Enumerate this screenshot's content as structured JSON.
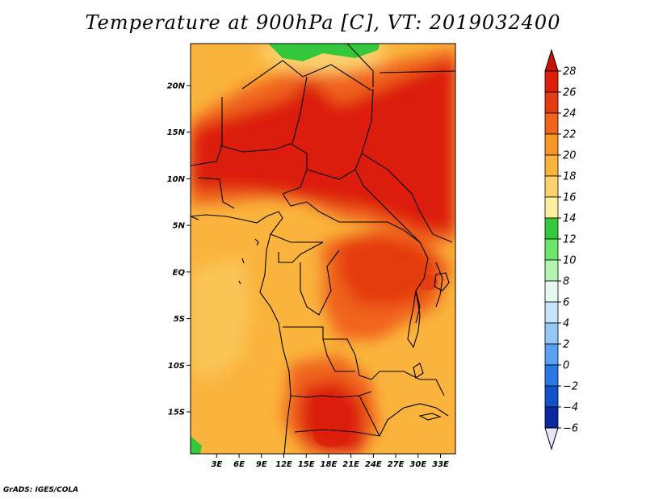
{
  "title": "Temperature at 900hPa [C], VT: 2019032400",
  "footer": "GrADS: IGES/COLA",
  "map": {
    "lon_range": [
      -0.5,
      35.0
    ],
    "lat_range": [
      -19.5,
      24.5
    ],
    "lon_ticks": [
      {
        "value": 3,
        "label": "3E"
      },
      {
        "value": 6,
        "label": "6E"
      },
      {
        "value": 9,
        "label": "9E"
      },
      {
        "value": 12,
        "label": "12E"
      },
      {
        "value": 15,
        "label": "15E"
      },
      {
        "value": 18,
        "label": "18E"
      },
      {
        "value": 21,
        "label": "21E"
      },
      {
        "value": 24,
        "label": "24E"
      },
      {
        "value": 27,
        "label": "27E"
      },
      {
        "value": 30,
        "label": "30E"
      },
      {
        "value": 33,
        "label": "33E"
      }
    ],
    "lat_ticks": [
      {
        "value": 20,
        "label": "20N"
      },
      {
        "value": 15,
        "label": "15N"
      },
      {
        "value": 10,
        "label": "10N"
      },
      {
        "value": 5,
        "label": "5N"
      },
      {
        "value": 0,
        "label": "EQ"
      },
      {
        "value": -5,
        "label": "5S"
      },
      {
        "value": -10,
        "label": "10S"
      },
      {
        "value": -15,
        "label": "15S"
      }
    ]
  },
  "colorbar": {
    "levels": [
      28,
      26,
      24,
      22,
      20,
      18,
      16,
      14,
      12,
      10,
      8,
      6,
      4,
      2,
      0,
      -2,
      -4,
      -6
    ],
    "colors": [
      "#dc1e0a",
      "#e43a10",
      "#f0641e",
      "#f89626",
      "#fab43c",
      "#fcd26e",
      "#fef0a0",
      "#36c83c",
      "#6ee66e",
      "#b4f5b4",
      "#e6f9ee",
      "#c8e4fa",
      "#96c8f5",
      "#5aa0f0",
      "#2878e6",
      "#1450c8",
      "#0a28a0",
      "#000a64"
    ],
    "top_color": "#c81408",
    "bottom_color": "#e6e6fa"
  }
}
